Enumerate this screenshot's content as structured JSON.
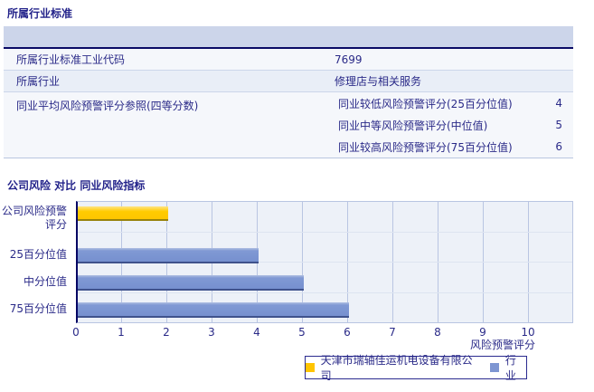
{
  "section1": {
    "title": "所属行业标准"
  },
  "table": {
    "rows": [
      {
        "label": "所属行业标准工业代码",
        "value": "7699"
      },
      {
        "label": "所属行业",
        "value": "修理店与相关服务"
      },
      {
        "label": "同业平均风险预警评分参照(四等分数)",
        "sub_rows": [
          {
            "label": "同业较低风险预警评分(25百分位值)",
            "value": "4"
          },
          {
            "label": "同业中等风险预警评分(中位值)",
            "value": "5"
          },
          {
            "label": "同业较高风险预警评分(75百分位值)",
            "value": "6"
          }
        ]
      }
    ]
  },
  "section2": {
    "title": "公司风险 对比 同业风险指标"
  },
  "chart_data": {
    "type": "bar",
    "orientation": "horizontal",
    "title": "公司风险 对比 同业风险指标",
    "categories": [
      "公司风险预警评分",
      "25百分位值",
      "中分位值",
      "75百分位值"
    ],
    "series": [
      {
        "name": "天津市瑞轴佳运机电设备有限公司",
        "color": "#ffc400",
        "values": [
          2,
          null,
          null,
          null
        ]
      },
      {
        "name": "行业",
        "color": "#7e96d2",
        "values": [
          null,
          4,
          5,
          6
        ]
      }
    ],
    "xlabel": "风险预警评分",
    "xlim": [
      0,
      10
    ],
    "xticks": [
      0,
      1,
      2,
      3,
      4,
      5,
      6,
      7,
      8,
      9,
      10
    ],
    "grid": "vertical",
    "legend_position": "bottom",
    "plot_bg": "#edf1f8",
    "axis_color": "#050563"
  }
}
